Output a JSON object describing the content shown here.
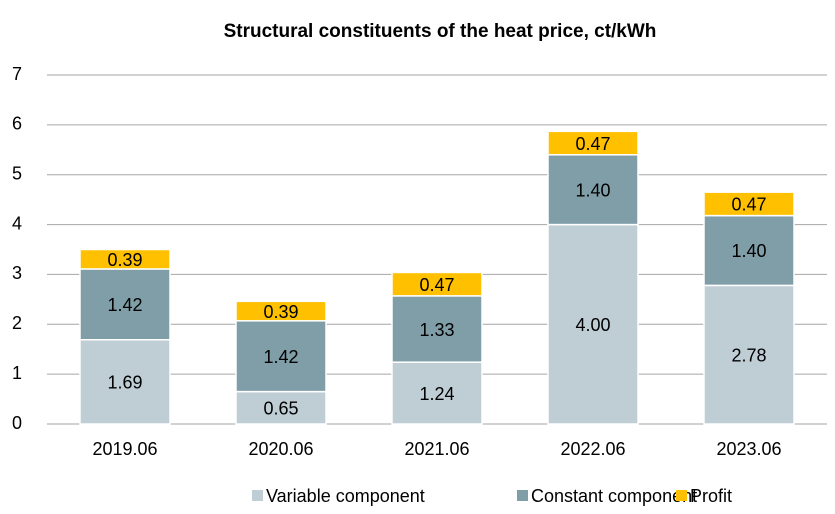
{
  "chart_data": {
    "type": "stacked_bar",
    "title": "Structural constituents of the heat price, ct/kWh",
    "categories": [
      "2019.06",
      "2020.06",
      "2021.06",
      "2022.06",
      "2023.06"
    ],
    "series": [
      {
        "name": "Variable component",
        "color": "#bfcdd5",
        "values": [
          1.69,
          0.65,
          1.24,
          4.0,
          2.78
        ],
        "value_labels": [
          "1.69",
          "0.65",
          "1.24",
          "4.00",
          "2.78"
        ]
      },
      {
        "name": "Constant component",
        "color": "#7f9ea8",
        "values": [
          1.42,
          1.42,
          1.33,
          1.4,
          1.4
        ],
        "value_labels": [
          "1.42",
          "1.42",
          "1.33",
          "1.40",
          "1.40"
        ]
      },
      {
        "name": "Profit",
        "color": "#ffc000",
        "values": [
          0.39,
          0.39,
          0.47,
          0.47,
          0.47
        ],
        "value_labels": [
          "0.39",
          "0.39",
          "0.47",
          "0.47",
          "0.47"
        ]
      }
    ],
    "ylim": [
      0,
      7
    ],
    "yticks": [
      0,
      1,
      2,
      3,
      4,
      5,
      6,
      7
    ],
    "grid": true,
    "legend": "bottom"
  }
}
